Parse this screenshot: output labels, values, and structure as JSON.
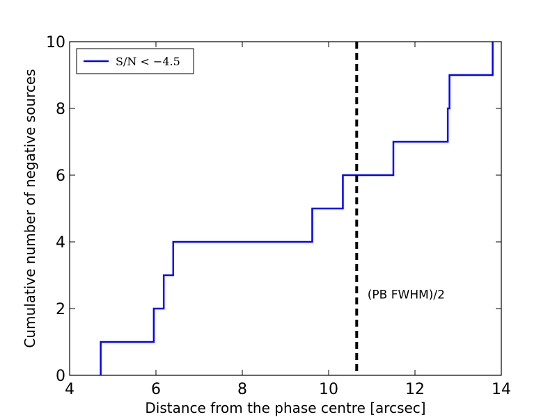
{
  "chart_data": {
    "type": "line",
    "step": "post",
    "xlabel": "Distance from the phase centre [arcsec]",
    "ylabel": "Cumulative number of negative sources",
    "xlim": [
      4,
      14
    ],
    "ylim": [
      0,
      10
    ],
    "xticks": [
      4,
      6,
      8,
      10,
      12,
      14
    ],
    "yticks": [
      0,
      2,
      4,
      6,
      8,
      10
    ],
    "grid": false,
    "legend": {
      "placement": "top-left"
    },
    "series": [
      {
        "name": "S/N < −4.5",
        "color": "#0000ff",
        "x": [
          4.72,
          5.95,
          6.18,
          6.4,
          9.62,
          10.33,
          11.5,
          12.76,
          12.8,
          13.8
        ],
        "y": [
          1,
          2,
          3,
          4,
          5,
          6,
          7,
          8,
          9,
          10
        ]
      }
    ],
    "vline": {
      "x": 10.65,
      "color": "#000000",
      "style": "dashed"
    },
    "annotations": [
      {
        "text": "(PB FWHM)/2",
        "x": 10.9,
        "y": 2.3
      }
    ]
  }
}
